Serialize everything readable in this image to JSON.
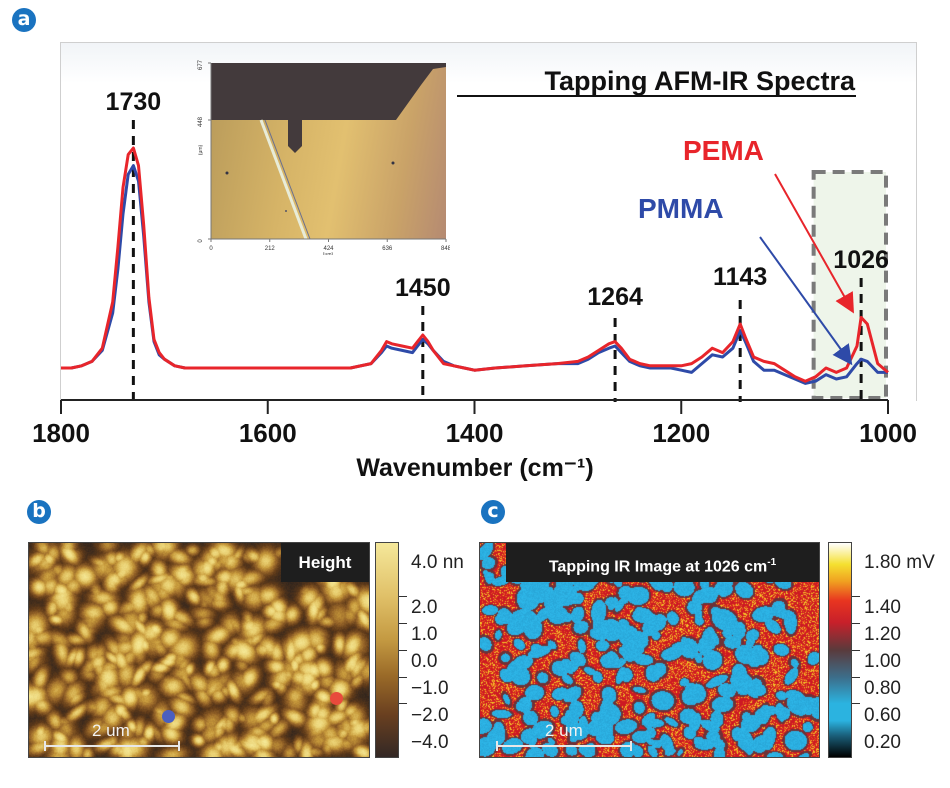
{
  "panels": {
    "a": {
      "badge": "a"
    },
    "b": {
      "badge": "b"
    },
    "c": {
      "badge": "c"
    }
  },
  "chart_data": [
    {
      "type": "line",
      "panel": "a",
      "title": "Tapping AFM-IR Spectra",
      "xlabel": "Wavenumber (cm⁻¹)",
      "ylabel": "",
      "xlim": [
        1800,
        1000
      ],
      "x_reversed": true,
      "x_ticks": [
        1800,
        1600,
        1400,
        1200,
        1000
      ],
      "y_ticks": [],
      "grid": false,
      "peak_annotations": [
        1730,
        1450,
        1264,
        1143,
        1026
      ],
      "highlight_region": {
        "x_range": [
          1070,
          1000
        ],
        "style": "dashed-box"
      },
      "legend": [
        {
          "name": "PEMA",
          "color": "#e8252b",
          "placement": "top-right",
          "arrow_to": 1026
        },
        {
          "name": "PMMA",
          "color": "#2e4aa8",
          "placement": "top-right",
          "arrow_to": 1026
        }
      ],
      "series": [
        {
          "name": "PMMA",
          "color": "#2e4aa8",
          "x": [
            1800,
            1790,
            1780,
            1770,
            1760,
            1750,
            1745,
            1740,
            1735,
            1730,
            1725,
            1720,
            1715,
            1710,
            1705,
            1700,
            1690,
            1680,
            1670,
            1650,
            1600,
            1550,
            1520,
            1500,
            1490,
            1485,
            1480,
            1470,
            1460,
            1455,
            1450,
            1445,
            1440,
            1430,
            1420,
            1410,
            1400,
            1380,
            1350,
            1320,
            1300,
            1290,
            1280,
            1270,
            1264,
            1258,
            1250,
            1240,
            1230,
            1220,
            1210,
            1200,
            1190,
            1180,
            1170,
            1160,
            1150,
            1143,
            1138,
            1130,
            1120,
            1110,
            1100,
            1090,
            1080,
            1070,
            1060,
            1050,
            1040,
            1030,
            1026,
            1020,
            1010,
            1000
          ],
          "y": [
            0.0,
            0.0,
            0.01,
            0.03,
            0.08,
            0.25,
            0.45,
            0.7,
            0.88,
            0.92,
            0.85,
            0.6,
            0.3,
            0.12,
            0.06,
            0.04,
            0.01,
            0.0,
            0.0,
            0.0,
            0.0,
            0.0,
            0.0,
            0.02,
            0.07,
            0.1,
            0.09,
            0.08,
            0.07,
            0.1,
            0.13,
            0.11,
            0.08,
            0.03,
            0.01,
            0.0,
            -0.01,
            0.0,
            0.01,
            0.02,
            0.02,
            0.04,
            0.07,
            0.09,
            0.1,
            0.07,
            0.03,
            0.01,
            0.0,
            0.0,
            0.0,
            -0.01,
            -0.02,
            0.02,
            0.06,
            0.05,
            0.09,
            0.17,
            0.12,
            0.03,
            -0.01,
            -0.01,
            -0.03,
            -0.05,
            -0.07,
            -0.06,
            -0.03,
            -0.05,
            -0.04,
            0.02,
            0.04,
            0.03,
            -0.02,
            -0.02
          ]
        },
        {
          "name": "PEMA",
          "color": "#e8252b",
          "x": [
            1800,
            1790,
            1780,
            1770,
            1760,
            1750,
            1745,
            1740,
            1735,
            1730,
            1725,
            1720,
            1715,
            1710,
            1705,
            1700,
            1690,
            1680,
            1670,
            1650,
            1600,
            1550,
            1520,
            1500,
            1490,
            1485,
            1480,
            1470,
            1460,
            1455,
            1450,
            1445,
            1440,
            1430,
            1420,
            1410,
            1400,
            1380,
            1350,
            1320,
            1300,
            1290,
            1280,
            1270,
            1264,
            1258,
            1250,
            1240,
            1230,
            1220,
            1210,
            1200,
            1190,
            1180,
            1170,
            1160,
            1150,
            1143,
            1138,
            1130,
            1120,
            1110,
            1100,
            1090,
            1080,
            1070,
            1060,
            1050,
            1040,
            1030,
            1026,
            1020,
            1010,
            1000
          ],
          "y": [
            0.0,
            0.0,
            0.01,
            0.03,
            0.09,
            0.3,
            0.55,
            0.82,
            0.97,
            1.0,
            0.92,
            0.65,
            0.32,
            0.13,
            0.07,
            0.04,
            0.01,
            0.0,
            0.0,
            0.0,
            0.0,
            0.0,
            0.0,
            0.02,
            0.08,
            0.12,
            0.11,
            0.1,
            0.09,
            0.12,
            0.15,
            0.12,
            0.08,
            0.02,
            0.01,
            0.0,
            -0.01,
            0.0,
            0.01,
            0.02,
            0.03,
            0.05,
            0.08,
            0.11,
            0.12,
            0.09,
            0.04,
            0.02,
            0.01,
            0.01,
            0.01,
            0.01,
            0.02,
            0.05,
            0.09,
            0.07,
            0.12,
            0.2,
            0.14,
            0.05,
            0.03,
            0.02,
            -0.01,
            -0.04,
            -0.06,
            -0.04,
            0.0,
            -0.02,
            0.0,
            0.1,
            0.23,
            0.2,
            0.02,
            -0.02
          ]
        }
      ],
      "inset": {
        "description": "optical microscope image of AFM cantilever over sample",
        "x_ticks": [
          "0",
          "212",
          "424",
          "636",
          "848"
        ],
        "y_ticks": [
          "0",
          "448",
          "677"
        ],
        "xlabel": "(μm)",
        "ylabel": "(μm)"
      }
    },
    {
      "type": "heatmap",
      "panel": "b",
      "title": "Height",
      "scale_bar": "2 um",
      "colorbar": {
        "labels": [
          "4.0 nm",
          "2.0",
          "1.0",
          "0.0",
          "−1.0",
          "−2.0",
          "−4.0"
        ],
        "top_label_visible": "4.0 nn",
        "range": [
          -4.0,
          4.0
        ],
        "colors": [
          "#2b2522",
          "#5a3518",
          "#8a5a20",
          "#b9872e",
          "#d9b450",
          "#f0dd8a"
        ]
      },
      "markers": [
        {
          "color": "#4a5fc0",
          "label": "PMMA"
        },
        {
          "color": "#e84a3c",
          "label": "PEMA"
        }
      ]
    },
    {
      "type": "heatmap",
      "panel": "c",
      "title": "Tapping IR Image at 1026 cm⁻¹",
      "scale_bar": "2 um",
      "colorbar": {
        "labels": [
          "1.80 mV",
          "1.40",
          "1.20",
          "1.00",
          "0.80",
          "0.60",
          "0.20"
        ],
        "range": [
          0.2,
          1.8
        ],
        "colors": [
          "#000000",
          "#1a5f7a",
          "#2bb3e0",
          "#3c6f8c",
          "#5a3a3c",
          "#c8202a",
          "#e83520",
          "#f0a020",
          "#f5e030",
          "#ffffff"
        ]
      }
    }
  ],
  "panel_b": {
    "title": "Height",
    "scale_label": "2 um",
    "cbar_labels": [
      "4.0 nn",
      "2.0",
      "1.0",
      "0.0",
      "−1.0",
      "−2.0",
      "−4.0"
    ]
  },
  "panel_c": {
    "title_main": "Tapping IR Image at 1026 cm",
    "title_sup": "-1",
    "scale_label": "2 um",
    "cbar_labels": [
      "1.80 mV",
      "1.40",
      "1.20",
      "1.00",
      "0.80",
      "0.60",
      "0.20"
    ]
  },
  "panel_a": {
    "title": "Tapping AFM-IR Spectra",
    "xlabel": "Wavenumber (cm⁻¹)",
    "x_tick_labels": [
      "1800",
      "1600",
      "1400",
      "1200",
      "1000"
    ],
    "peak_labels": [
      "1730",
      "1450",
      "1264",
      "1143",
      "1026"
    ],
    "legend_pema": "PEMA",
    "legend_pmma": "PMMA",
    "inset_x_ticks": [
      "0",
      "212",
      "424",
      "636",
      "848"
    ],
    "inset_y_ticks": [
      "0",
      "448",
      "677"
    ],
    "inset_unit": "(μm)"
  }
}
